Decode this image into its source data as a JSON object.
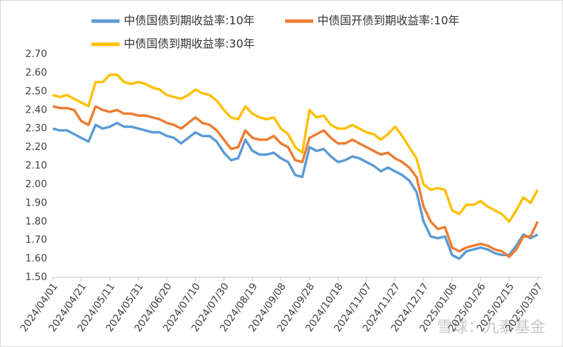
{
  "chart_data": {
    "type": "line",
    "categories": [
      "2024/04/01",
      null,
      null,
      null,
      "2024/04/21",
      null,
      null,
      null,
      "2024/05/11",
      null,
      null,
      null,
      "2024/05/31",
      null,
      null,
      null,
      "2024/06/20",
      null,
      null,
      null,
      "2024/07/10",
      null,
      null,
      null,
      "2024/07/30",
      null,
      null,
      null,
      "2024/08/19",
      null,
      null,
      null,
      "2024/09/08",
      null,
      null,
      null,
      "2024/09/28",
      null,
      null,
      null,
      "2024/10/18",
      null,
      null,
      null,
      "2024/11/07",
      null,
      null,
      null,
      "2024/11/27",
      null,
      null,
      null,
      "2024/12/17",
      null,
      null,
      null,
      "2025/01/06",
      null,
      null,
      null,
      "2025/01/26",
      null,
      null,
      null,
      "2025/02/15",
      null,
      null,
      null,
      "2025/03/07"
    ],
    "series": [
      {
        "name": "中债国债到期收益率:10年",
        "color": "#5b9bd5",
        "values": [
          2.3,
          2.29,
          2.29,
          2.27,
          2.25,
          2.23,
          2.32,
          2.3,
          2.31,
          2.33,
          2.31,
          2.31,
          2.3,
          2.29,
          2.28,
          2.28,
          2.26,
          2.25,
          2.22,
          2.25,
          2.28,
          2.26,
          2.26,
          2.23,
          2.17,
          2.13,
          2.14,
          2.24,
          2.18,
          2.16,
          2.16,
          2.17,
          2.14,
          2.12,
          2.05,
          2.04,
          2.2,
          2.18,
          2.19,
          2.15,
          2.12,
          2.13,
          2.15,
          2.14,
          2.12,
          2.1,
          2.07,
          2.09,
          2.07,
          2.05,
          2.02,
          1.96,
          1.8,
          1.72,
          1.71,
          1.72,
          1.62,
          1.6,
          1.64,
          1.65,
          1.66,
          1.65,
          1.63,
          1.62,
          1.62,
          1.67,
          1.73,
          1.71,
          1.73
        ]
      },
      {
        "name": "中债国开债到期收益率:10年",
        "color": "#ed7d31",
        "values": [
          2.42,
          2.41,
          2.41,
          2.4,
          2.34,
          2.32,
          2.42,
          2.4,
          2.39,
          2.4,
          2.38,
          2.38,
          2.37,
          2.37,
          2.36,
          2.35,
          2.33,
          2.32,
          2.3,
          2.33,
          2.36,
          2.33,
          2.32,
          2.29,
          2.24,
          2.19,
          2.2,
          2.29,
          2.25,
          2.24,
          2.24,
          2.26,
          2.22,
          2.2,
          2.13,
          2.12,
          2.25,
          2.27,
          2.29,
          2.25,
          2.22,
          2.22,
          2.24,
          2.22,
          2.2,
          2.18,
          2.16,
          2.17,
          2.14,
          2.12,
          2.09,
          2.04,
          1.88,
          1.8,
          1.76,
          1.77,
          1.66,
          1.64,
          1.66,
          1.67,
          1.68,
          1.67,
          1.65,
          1.64,
          1.61,
          1.65,
          1.72,
          1.72,
          1.8
        ]
      },
      {
        "name": "中债国债到期收益率:30年",
        "color": "#ffc000",
        "values": [
          2.48,
          2.47,
          2.48,
          2.46,
          2.44,
          2.42,
          2.55,
          2.55,
          2.59,
          2.59,
          2.55,
          2.54,
          2.55,
          2.54,
          2.52,
          2.51,
          2.48,
          2.47,
          2.46,
          2.48,
          2.51,
          2.49,
          2.48,
          2.45,
          2.4,
          2.36,
          2.35,
          2.42,
          2.38,
          2.36,
          2.35,
          2.36,
          2.3,
          2.27,
          2.2,
          2.17,
          2.4,
          2.36,
          2.37,
          2.32,
          2.3,
          2.3,
          2.32,
          2.3,
          2.28,
          2.27,
          2.24,
          2.27,
          2.31,
          2.26,
          2.2,
          2.14,
          2.0,
          1.97,
          1.98,
          1.97,
          1.86,
          1.84,
          1.89,
          1.89,
          1.91,
          1.88,
          1.86,
          1.84,
          1.8,
          1.86,
          1.93,
          1.9,
          1.97
        ]
      }
    ],
    "ylim": [
      1.5,
      2.7
    ],
    "yticks": [
      {
        "value": 1.5,
        "label": "1.50"
      },
      {
        "value": 1.6,
        "label": "1.60"
      },
      {
        "value": 1.7,
        "label": "1.70"
      },
      {
        "value": 1.8,
        "label": "1.80"
      },
      {
        "value": 1.9,
        "label": "1.90"
      },
      {
        "value": 2.0,
        "label": "2.00"
      },
      {
        "value": 2.1,
        "label": "2.10"
      },
      {
        "value": 2.2,
        "label": "2.20"
      },
      {
        "value": 2.3,
        "label": "2.30"
      },
      {
        "value": 2.4,
        "label": "2.40"
      },
      {
        "value": 2.5,
        "label": "2.50"
      },
      {
        "value": 2.6,
        "label": "2.60"
      },
      {
        "value": 2.7,
        "label": "2.70"
      }
    ],
    "grid": false,
    "watermark": "雪球：九泰基金"
  }
}
